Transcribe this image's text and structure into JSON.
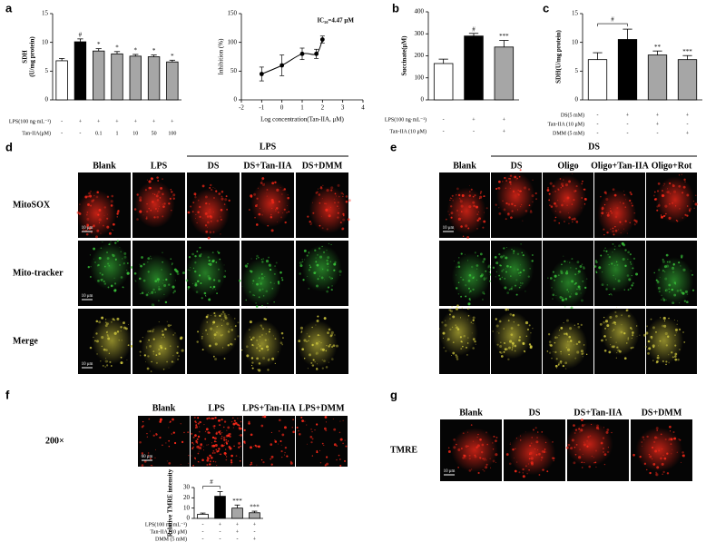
{
  "panel_labels": [
    "a",
    "b",
    "c",
    "d",
    "e",
    "f",
    "g"
  ],
  "chart_data": [
    {
      "type": "bar",
      "ylabel": [
        "SDH",
        "(U/mg protein)"
      ],
      "ylim": [
        0,
        15
      ],
      "yticks": [
        0,
        5,
        10,
        15
      ],
      "values": [
        6.8,
        10.1,
        8.5,
        8.0,
        7.6,
        7.5,
        6.6
      ],
      "errors": [
        0.4,
        0.5,
        0.4,
        0.4,
        0.3,
        0.3,
        0.3
      ],
      "colors": [
        "#ffffff",
        "#000000",
        "#a6a6a6",
        "#a6a6a6",
        "#a6a6a6",
        "#a6a6a6",
        "#a6a6a6"
      ],
      "significance": [
        null,
        "#",
        "*",
        "*",
        "*",
        "*",
        "*"
      ],
      "bracket": false,
      "conditions": [
        {
          "label": "LPS(100 ng·mL⁻¹)",
          "values": [
            "-",
            "+",
            "+",
            "+",
            "+",
            "+",
            "+"
          ]
        },
        {
          "label": "Tan-IIA(μM)",
          "values": [
            "-",
            "-",
            "0.1",
            "1",
            "10",
            "50",
            "100"
          ]
        }
      ]
    },
    {
      "type": "line",
      "ylabel": "Inhibition (%)",
      "xlabel": "Log concentration(Tan-IIA, μM)",
      "annotation": "IC₅₀=4.47 μM",
      "xlim": [
        -2,
        4
      ],
      "xticks": [
        -2,
        -1,
        0,
        1,
        2,
        3,
        4
      ],
      "ylim": [
        0,
        150
      ],
      "yticks": [
        0,
        50,
        100,
        150
      ],
      "x": [
        -1,
        0,
        1,
        1.7,
        2
      ],
      "y": [
        45,
        60,
        80,
        80,
        105
      ],
      "errors": [
        12,
        18,
        10,
        8,
        6
      ],
      "color": "#000000"
    },
    {
      "type": "bar",
      "ylabel": [
        "Succinate(μM)"
      ],
      "ylim": [
        0,
        400
      ],
      "yticks": [
        0,
        100,
        200,
        300,
        400
      ],
      "values": [
        165,
        290,
        240
      ],
      "errors": [
        20,
        12,
        30
      ],
      "colors": [
        "#ffffff",
        "#000000",
        "#a6a6a6"
      ],
      "significance": [
        null,
        "#",
        "***"
      ],
      "bracket": false,
      "conditions": [
        {
          "label": "LPS(100 ng·mL⁻¹)",
          "values": [
            "-",
            "+",
            "+"
          ]
        },
        {
          "label": "Tan-IIA (10 μM)",
          "values": [
            "-",
            "-",
            "+"
          ]
        }
      ]
    },
    {
      "type": "bar",
      "ylabel": [
        "SDH(U/mg protein)"
      ],
      "ylim": [
        0,
        15
      ],
      "yticks": [
        0,
        5,
        10,
        15
      ],
      "values": [
        7.0,
        10.5,
        7.8,
        7.0
      ],
      "errors": [
        1.2,
        1.8,
        0.7,
        0.7
      ],
      "colors": [
        "#ffffff",
        "#000000",
        "#a6a6a6",
        "#a6a6a6"
      ],
      "significance": [
        null,
        "#",
        "**",
        "***"
      ],
      "bracket": true,
      "conditions": [
        {
          "label": "DS(5 mM)",
          "values": [
            "-",
            "+",
            "+",
            "+"
          ]
        },
        {
          "label": "Tan-IIA (10 μM)",
          "values": [
            "-",
            "-",
            "+",
            "-"
          ]
        },
        {
          "label": "DMM (5 mM)",
          "values": [
            "-",
            "-",
            "-",
            "+"
          ]
        }
      ]
    },
    {
      "type": "bar",
      "ylabel": [
        "Relative TMRE intensity"
      ],
      "ylim": [
        0,
        30
      ],
      "yticks": [
        0,
        10,
        20,
        30
      ],
      "values": [
        4,
        21.5,
        10,
        5.5
      ],
      "errors": [
        1.2,
        4.5,
        3,
        1.5
      ],
      "colors": [
        "#ffffff",
        "#000000",
        "#a6a6a6",
        "#a6a6a6"
      ],
      "significance": [
        null,
        "#",
        "***",
        "***"
      ],
      "bracket": true,
      "conditions": [
        {
          "label": "LPS(100 ng·mL⁻¹)",
          "values": [
            "-",
            "+",
            "+",
            "+"
          ]
        },
        {
          "label": "Tan-IIA (10 μM)",
          "values": [
            "-",
            "-",
            "+",
            "-"
          ]
        },
        {
          "label": "DMM (5 mM)",
          "values": [
            "-",
            "-",
            "-",
            "+"
          ]
        }
      ]
    }
  ],
  "panel_d": {
    "group": "LPS",
    "columns": [
      "Blank",
      "LPS",
      "DS",
      "DS+Tan-IIA",
      "DS+DMM"
    ],
    "rows": [
      "MitoSOX",
      "Mito-tracker",
      "Merge"
    ],
    "scale_bar": "10 μm"
  },
  "panel_e": {
    "group": "DS",
    "columns": [
      "Blank",
      "DS",
      "Oligo",
      "Oligo+Tan-IIA",
      "Oligo+Rot"
    ],
    "scale_bar": "10 μm"
  },
  "panel_f": {
    "columns": [
      "Blank",
      "LPS",
      "LPS+Tan-IIA",
      "LPS+DMM"
    ],
    "rows": [
      "200×"
    ],
    "scale_bar": "60 μm"
  },
  "panel_g": {
    "columns": [
      "Blank",
      "DS",
      "DS+Tan-IIA",
      "DS+DMM"
    ],
    "rows": [
      "TMRE"
    ],
    "scale_bar": "10 μm"
  }
}
